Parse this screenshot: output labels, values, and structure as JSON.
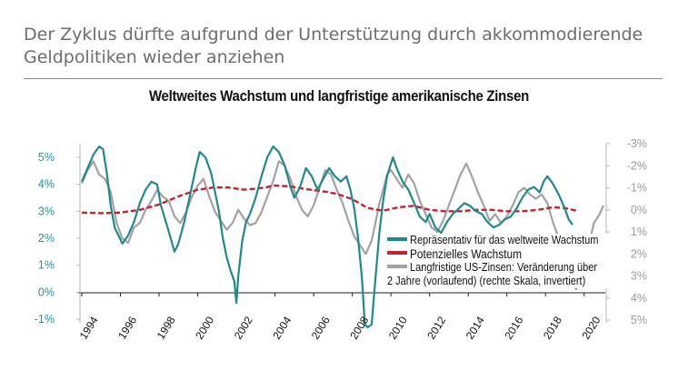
{
  "headline": {
    "line1": "Der Zyklus dürfte aufgrund der Unterstützung durch akkommodierende",
    "line2": "Geldpolitiken wieder anziehen"
  },
  "chart_data": {
    "type": "line",
    "title": "Weltweites Wachstum und langfristige amerikanische Zinsen",
    "x_range": [
      1994,
      2021
    ],
    "x_ticks": [
      "1994",
      "1996",
      "1998",
      "2000",
      "2002",
      "2004",
      "2006",
      "2008",
      "2010",
      "2012",
      "2014",
      "2016",
      "2018",
      "2020"
    ],
    "y_left": {
      "range": [
        -1,
        5.5
      ],
      "ticks": [
        "5%",
        "4%",
        "3%",
        "2%",
        "1%",
        "0%",
        "-1%"
      ],
      "tick_values": [
        5,
        4,
        3,
        2,
        1,
        0,
        -1
      ]
    },
    "y_right": {
      "range": [
        -3,
        5
      ],
      "inverted": true,
      "ticks": [
        "-3%",
        "-2%",
        "-1%",
        "0%",
        "1%",
        "2%",
        "3%",
        "4%",
        "5%"
      ],
      "tick_values": [
        -3,
        -2,
        -1,
        0,
        1,
        2,
        3,
        4,
        5
      ]
    },
    "series": [
      {
        "name": "Repräsentativ für das weltweite Wachstum",
        "axis": "left",
        "color": "#1f8a8c",
        "points": [
          [
            1994.0,
            4.1
          ],
          [
            1994.3,
            4.6
          ],
          [
            1994.6,
            5.1
          ],
          [
            1994.9,
            5.4
          ],
          [
            1995.1,
            5.3
          ],
          [
            1995.3,
            4.4
          ],
          [
            1995.5,
            3.2
          ],
          [
            1995.7,
            2.4
          ],
          [
            1995.9,
            2.1
          ],
          [
            1996.1,
            1.8
          ],
          [
            1996.4,
            2.1
          ],
          [
            1996.7,
            2.6
          ],
          [
            1997.0,
            3.3
          ],
          [
            1997.3,
            3.8
          ],
          [
            1997.6,
            4.1
          ],
          [
            1997.9,
            4.0
          ],
          [
            1998.1,
            3.2
          ],
          [
            1998.4,
            2.5
          ],
          [
            1998.6,
            2.0
          ],
          [
            1998.8,
            1.5
          ],
          [
            1999.0,
            1.8
          ],
          [
            1999.3,
            2.6
          ],
          [
            1999.6,
            3.6
          ],
          [
            1999.9,
            4.6
          ],
          [
            2000.1,
            5.2
          ],
          [
            2000.4,
            5.0
          ],
          [
            2000.7,
            4.4
          ],
          [
            2000.9,
            3.7
          ],
          [
            2001.1,
            3.0
          ],
          [
            2001.3,
            2.0
          ],
          [
            2001.5,
            1.3
          ],
          [
            2001.7,
            0.8
          ],
          [
            2001.9,
            0.4
          ],
          [
            2002.0,
            -0.4
          ],
          [
            2002.1,
            0.6
          ],
          [
            2002.3,
            1.9
          ],
          [
            2002.5,
            2.6
          ],
          [
            2002.7,
            2.9
          ],
          [
            2003.0,
            3.5
          ],
          [
            2003.3,
            4.3
          ],
          [
            2003.6,
            5.0
          ],
          [
            2003.9,
            5.4
          ],
          [
            2004.2,
            5.2
          ],
          [
            2004.5,
            4.7
          ],
          [
            2004.8,
            3.9
          ],
          [
            2005.0,
            3.5
          ],
          [
            2005.3,
            3.9
          ],
          [
            2005.6,
            4.6
          ],
          [
            2005.9,
            4.3
          ],
          [
            2006.2,
            3.8
          ],
          [
            2006.5,
            4.2
          ],
          [
            2006.8,
            4.6
          ],
          [
            2007.1,
            4.3
          ],
          [
            2007.4,
            4.1
          ],
          [
            2007.7,
            4.3
          ],
          [
            2007.9,
            3.8
          ],
          [
            2008.1,
            3.1
          ],
          [
            2008.3,
            2.0
          ],
          [
            2008.5,
            0.5
          ],
          [
            2008.65,
            -1.2
          ],
          [
            2008.8,
            -1.3
          ],
          [
            2009.0,
            -1.2
          ],
          [
            2009.2,
            0.5
          ],
          [
            2009.4,
            2.2
          ],
          [
            2009.6,
            3.4
          ],
          [
            2009.8,
            4.3
          ],
          [
            2010.1,
            5.0
          ],
          [
            2010.3,
            4.6
          ],
          [
            2010.6,
            4.1
          ],
          [
            2010.9,
            3.8
          ],
          [
            2011.2,
            3.3
          ],
          [
            2011.5,
            2.8
          ],
          [
            2011.8,
            2.6
          ],
          [
            2012.0,
            2.9
          ],
          [
            2012.3,
            2.4
          ],
          [
            2012.6,
            2.2
          ],
          [
            2012.9,
            2.6
          ],
          [
            2013.2,
            2.9
          ],
          [
            2013.5,
            3.1
          ],
          [
            2013.8,
            3.3
          ],
          [
            2014.1,
            3.2
          ],
          [
            2014.4,
            3.0
          ],
          [
            2014.7,
            2.9
          ],
          [
            2015.0,
            2.6
          ],
          [
            2015.3,
            2.4
          ],
          [
            2015.6,
            2.5
          ],
          [
            2015.9,
            2.7
          ],
          [
            2016.2,
            2.8
          ],
          [
            2016.5,
            3.1
          ],
          [
            2016.8,
            3.5
          ],
          [
            2017.1,
            3.8
          ],
          [
            2017.4,
            3.9
          ],
          [
            2017.7,
            3.7
          ],
          [
            2017.9,
            4.1
          ],
          [
            2018.1,
            4.3
          ],
          [
            2018.4,
            4.0
          ],
          [
            2018.7,
            3.6
          ],
          [
            2019.0,
            3.1
          ],
          [
            2019.2,
            2.7
          ],
          [
            2019.4,
            2.5
          ]
        ]
      },
      {
        "name": "Potenzielles Wachstum",
        "axis": "left",
        "color": "#c8202f",
        "dashed": true,
        "points": [
          [
            1994.0,
            2.95
          ],
          [
            1995.0,
            2.93
          ],
          [
            1996.0,
            2.95
          ],
          [
            1997.0,
            3.05
          ],
          [
            1998.0,
            3.25
          ],
          [
            1999.0,
            3.55
          ],
          [
            2000.0,
            3.8
          ],
          [
            2000.8,
            3.88
          ],
          [
            2001.6,
            3.88
          ],
          [
            2002.4,
            3.8
          ],
          [
            2003.2,
            3.85
          ],
          [
            2004.0,
            3.95
          ],
          [
            2004.8,
            3.92
          ],
          [
            2005.6,
            3.82
          ],
          [
            2006.4,
            3.75
          ],
          [
            2007.2,
            3.65
          ],
          [
            2008.0,
            3.45
          ],
          [
            2008.8,
            3.12
          ],
          [
            2009.6,
            3.02
          ],
          [
            2010.4,
            3.15
          ],
          [
            2011.2,
            3.2
          ],
          [
            2012.0,
            3.05
          ],
          [
            2012.8,
            3.0
          ],
          [
            2013.6,
            3.0
          ],
          [
            2014.4,
            3.05
          ],
          [
            2015.2,
            3.05
          ],
          [
            2016.0,
            3.0
          ],
          [
            2016.8,
            3.0
          ],
          [
            2017.6,
            3.05
          ],
          [
            2018.4,
            3.15
          ],
          [
            2019.0,
            3.12
          ],
          [
            2019.6,
            3.02
          ]
        ]
      },
      {
        "name": "Langfristige US-Zinsen: Veränderung über 2 Jahre (vorlaufend) (rechte Skala, invertiert)",
        "axis": "right",
        "color": "#a2a2a2",
        "points": [
          [
            1994.0,
            -1.2
          ],
          [
            1994.3,
            -1.8
          ],
          [
            1994.6,
            -2.2
          ],
          [
            1994.9,
            -1.6
          ],
          [
            1995.2,
            -1.4
          ],
          [
            1995.5,
            -0.8
          ],
          [
            1995.8,
            0.6
          ],
          [
            1996.1,
            1.3
          ],
          [
            1996.4,
            1.5
          ],
          [
            1996.7,
            0.8
          ],
          [
            1997.0,
            0.6
          ],
          [
            1997.3,
            0.0
          ],
          [
            1997.6,
            -0.4
          ],
          [
            1997.9,
            -0.9
          ],
          [
            1998.2,
            -0.6
          ],
          [
            1998.5,
            -0.4
          ],
          [
            1998.8,
            0.3
          ],
          [
            1999.1,
            0.6
          ],
          [
            1999.4,
            0.1
          ],
          [
            1999.7,
            -0.6
          ],
          [
            2000.0,
            -1.1
          ],
          [
            2000.3,
            -1.4
          ],
          [
            2000.6,
            -0.6
          ],
          [
            2000.9,
            0.1
          ],
          [
            2001.2,
            0.5
          ],
          [
            2001.5,
            0.9
          ],
          [
            2001.8,
            0.6
          ],
          [
            2002.1,
            0.0
          ],
          [
            2002.4,
            0.4
          ],
          [
            2002.7,
            0.7
          ],
          [
            2003.0,
            0.6
          ],
          [
            2003.3,
            0.1
          ],
          [
            2003.6,
            -0.6
          ],
          [
            2003.9,
            -1.3
          ],
          [
            2004.2,
            -2.2
          ],
          [
            2004.5,
            -2.0
          ],
          [
            2004.8,
            -1.4
          ],
          [
            2005.1,
            -0.6
          ],
          [
            2005.4,
            0.0
          ],
          [
            2005.7,
            0.3
          ],
          [
            2006.0,
            -0.2
          ],
          [
            2006.3,
            -1.0
          ],
          [
            2006.6,
            -1.8
          ],
          [
            2006.9,
            -1.6
          ],
          [
            2007.2,
            -0.9
          ],
          [
            2007.5,
            -0.3
          ],
          [
            2007.8,
            0.5
          ],
          [
            2008.1,
            1.2
          ],
          [
            2008.4,
            1.6
          ],
          [
            2008.7,
            2.0
          ],
          [
            2009.0,
            1.4
          ],
          [
            2009.2,
            0.6
          ],
          [
            2009.4,
            -0.3
          ],
          [
            2009.6,
            -0.9
          ],
          [
            2009.8,
            -1.6
          ],
          [
            2010.0,
            -1.8
          ],
          [
            2010.3,
            -1.4
          ],
          [
            2010.6,
            -1.0
          ],
          [
            2010.9,
            -1.6
          ],
          [
            2011.2,
            -1.2
          ],
          [
            2011.5,
            -0.4
          ],
          [
            2011.8,
            0.2
          ],
          [
            2012.1,
            0.8
          ],
          [
            2012.4,
            1.0
          ],
          [
            2012.7,
            0.5
          ],
          [
            2013.0,
            -0.2
          ],
          [
            2013.3,
            -0.9
          ],
          [
            2013.6,
            -1.6
          ],
          [
            2013.9,
            -2.1
          ],
          [
            2014.2,
            -1.5
          ],
          [
            2014.5,
            -0.8
          ],
          [
            2014.8,
            -0.2
          ],
          [
            2015.1,
            0.5
          ],
          [
            2015.4,
            0.2
          ],
          [
            2015.7,
            0.6
          ],
          [
            2016.0,
            0.3
          ],
          [
            2016.3,
            -0.2
          ],
          [
            2016.6,
            -0.8
          ],
          [
            2016.9,
            -1.0
          ],
          [
            2017.2,
            -0.7
          ],
          [
            2017.5,
            -0.5
          ],
          [
            2017.8,
            -0.7
          ],
          [
            2018.1,
            -0.3
          ],
          [
            2018.4,
            0.6
          ],
          [
            2018.7,
            1.3
          ],
          [
            2019.0,
            2.2
          ],
          [
            2019.3,
            3.4
          ],
          [
            2019.6,
            3.6
          ],
          [
            2019.9,
            2.6
          ],
          [
            2020.2,
            1.8
          ],
          [
            2020.5,
            0.6
          ],
          [
            2020.8,
            0.2
          ],
          [
            2021.0,
            -0.2
          ]
        ]
      }
    ],
    "legend": {
      "placement": "bottom-right-inside",
      "entries": [
        {
          "label": "Repräsentativ für das weltweite Wachstum",
          "color": "#1f8a8c"
        },
        {
          "label": "Potenzielles Wachstum",
          "color": "#c8202f"
        },
        {
          "label_line1": "Langfristige US-Zinsen: Veränderung über",
          "label_line2": "2 Jahre (vorlaufend) (rechte Skala, invertiert)",
          "color": "#a2a2a2"
        }
      ]
    },
    "grid": false
  }
}
